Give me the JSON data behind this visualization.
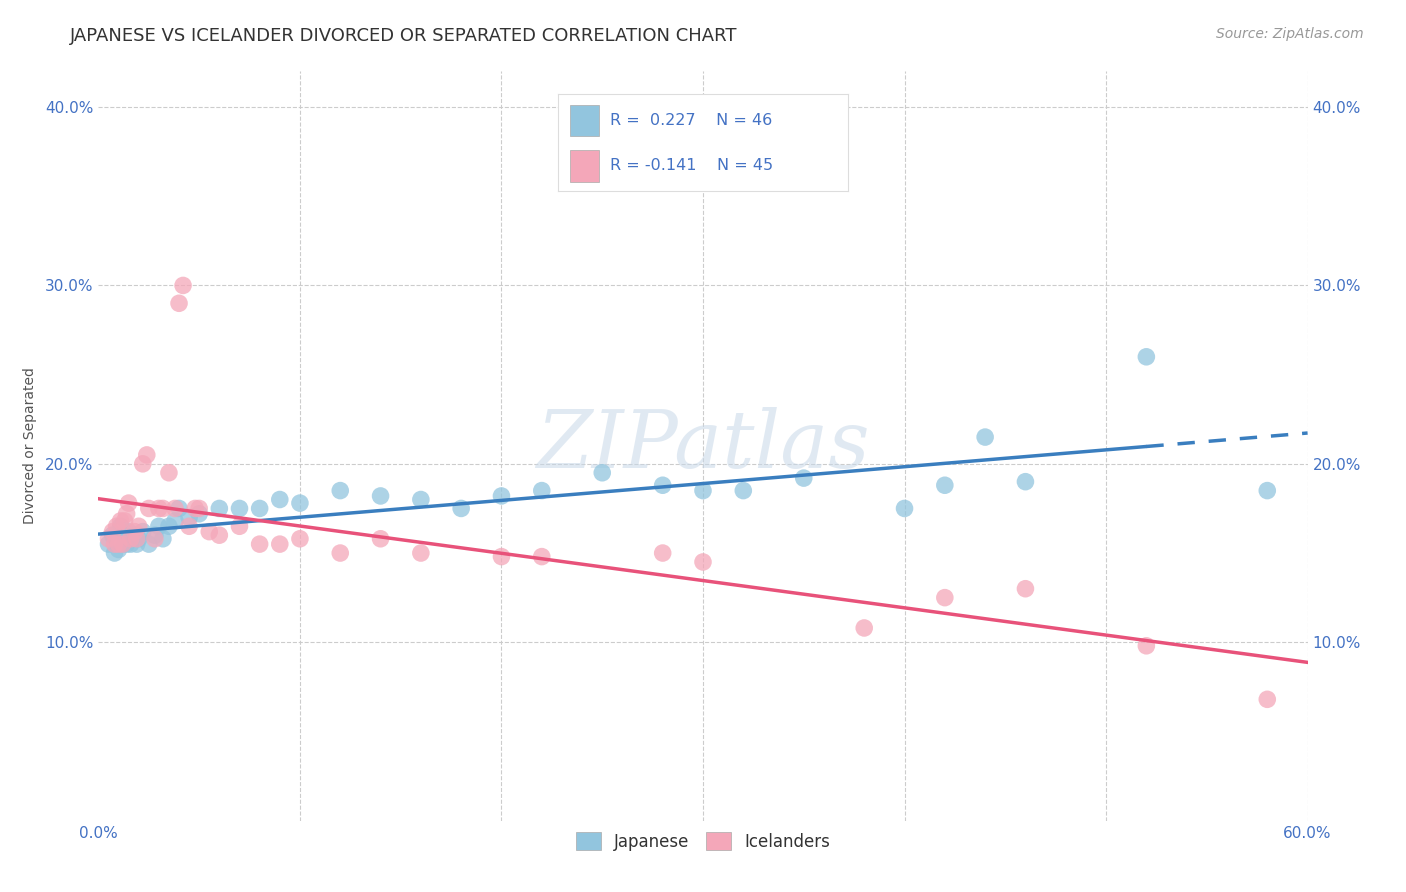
{
  "title": "JAPANESE VS ICELANDER DIVORCED OR SEPARATED CORRELATION CHART",
  "source": "Source: ZipAtlas.com",
  "ylabel": "Divorced or Separated",
  "watermark": "ZIPatlas",
  "xlim": [
    0.0,
    0.6
  ],
  "ylim": [
    0.0,
    0.42
  ],
  "xticks": [
    0.0,
    0.1,
    0.2,
    0.3,
    0.4,
    0.5,
    0.6
  ],
  "yticks": [
    0.1,
    0.2,
    0.3,
    0.4
  ],
  "xticklabels": [
    "0.0%",
    "",
    "",
    "",
    "",
    "",
    "60.0%"
  ],
  "yticklabels": [
    "10.0%",
    "20.0%",
    "30.0%",
    "40.0%"
  ],
  "blue_color": "#92c5de",
  "pink_color": "#f4a7b9",
  "blue_line_color": "#3a7ebf",
  "pink_line_color": "#e8527a",
  "grid_color": "#cccccc",
  "background_color": "#ffffff",
  "japanese_points": [
    [
      0.005,
      0.155
    ],
    [
      0.007,
      0.16
    ],
    [
      0.008,
      0.15
    ],
    [
      0.009,
      0.158
    ],
    [
      0.01,
      0.152
    ],
    [
      0.011,
      0.165
    ],
    [
      0.012,
      0.155
    ],
    [
      0.013,
      0.16
    ],
    [
      0.014,
      0.155
    ],
    [
      0.015,
      0.162
    ],
    [
      0.016,
      0.155
    ],
    [
      0.018,
      0.16
    ],
    [
      0.019,
      0.155
    ],
    [
      0.02,
      0.158
    ],
    [
      0.022,
      0.162
    ],
    [
      0.025,
      0.155
    ],
    [
      0.028,
      0.16
    ],
    [
      0.03,
      0.165
    ],
    [
      0.032,
      0.158
    ],
    [
      0.035,
      0.165
    ],
    [
      0.038,
      0.168
    ],
    [
      0.04,
      0.175
    ],
    [
      0.045,
      0.17
    ],
    [
      0.05,
      0.172
    ],
    [
      0.06,
      0.175
    ],
    [
      0.07,
      0.175
    ],
    [
      0.08,
      0.175
    ],
    [
      0.09,
      0.18
    ],
    [
      0.1,
      0.178
    ],
    [
      0.12,
      0.185
    ],
    [
      0.14,
      0.182
    ],
    [
      0.16,
      0.18
    ],
    [
      0.18,
      0.175
    ],
    [
      0.2,
      0.182
    ],
    [
      0.22,
      0.185
    ],
    [
      0.25,
      0.195
    ],
    [
      0.28,
      0.188
    ],
    [
      0.3,
      0.185
    ],
    [
      0.32,
      0.185
    ],
    [
      0.35,
      0.192
    ],
    [
      0.4,
      0.175
    ],
    [
      0.42,
      0.188
    ],
    [
      0.44,
      0.215
    ],
    [
      0.46,
      0.19
    ],
    [
      0.52,
      0.26
    ],
    [
      0.58,
      0.185
    ]
  ],
  "icelander_points": [
    [
      0.005,
      0.158
    ],
    [
      0.007,
      0.162
    ],
    [
      0.008,
      0.155
    ],
    [
      0.009,
      0.165
    ],
    [
      0.01,
      0.155
    ],
    [
      0.011,
      0.168
    ],
    [
      0.012,
      0.155
    ],
    [
      0.013,
      0.168
    ],
    [
      0.014,
      0.172
    ],
    [
      0.015,
      0.178
    ],
    [
      0.016,
      0.158
    ],
    [
      0.018,
      0.162
    ],
    [
      0.019,
      0.158
    ],
    [
      0.02,
      0.165
    ],
    [
      0.022,
      0.2
    ],
    [
      0.024,
      0.205
    ],
    [
      0.025,
      0.175
    ],
    [
      0.028,
      0.158
    ],
    [
      0.03,
      0.175
    ],
    [
      0.032,
      0.175
    ],
    [
      0.035,
      0.195
    ],
    [
      0.038,
      0.175
    ],
    [
      0.04,
      0.29
    ],
    [
      0.042,
      0.3
    ],
    [
      0.045,
      0.165
    ],
    [
      0.048,
      0.175
    ],
    [
      0.05,
      0.175
    ],
    [
      0.055,
      0.162
    ],
    [
      0.06,
      0.16
    ],
    [
      0.07,
      0.165
    ],
    [
      0.08,
      0.155
    ],
    [
      0.09,
      0.155
    ],
    [
      0.1,
      0.158
    ],
    [
      0.12,
      0.15
    ],
    [
      0.14,
      0.158
    ],
    [
      0.16,
      0.15
    ],
    [
      0.2,
      0.148
    ],
    [
      0.22,
      0.148
    ],
    [
      0.28,
      0.15
    ],
    [
      0.3,
      0.145
    ],
    [
      0.38,
      0.108
    ],
    [
      0.42,
      0.125
    ],
    [
      0.46,
      0.13
    ],
    [
      0.52,
      0.098
    ],
    [
      0.58,
      0.068
    ]
  ],
  "title_fontsize": 13,
  "axis_label_fontsize": 10,
  "tick_fontsize": 11,
  "source_fontsize": 10
}
